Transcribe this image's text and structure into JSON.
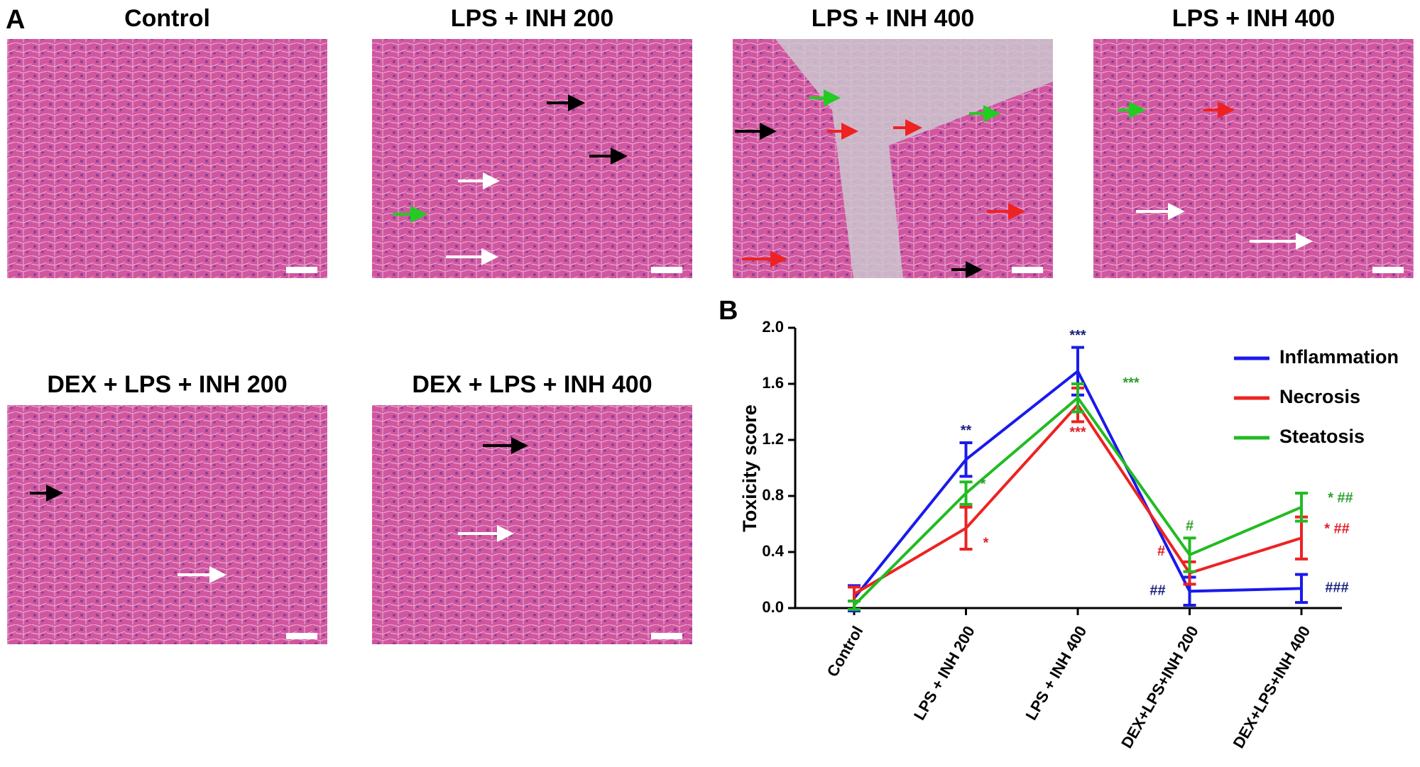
{
  "panel_a": {
    "label": "A",
    "panels": [
      {
        "title": "Control"
      },
      {
        "title": "LPS + INH 200"
      },
      {
        "title": "LPS + INH 400"
      },
      {
        "title": "LPS + INH 400"
      },
      {
        "title": "DEX + LPS + INH 200"
      },
      {
        "title": "DEX + LPS + INH 400"
      }
    ]
  },
  "chart_data": {
    "type": "line",
    "label": "B",
    "y_label": "Toxicity score",
    "categories": [
      "Control",
      "LPS + INH 200",
      "LPS + INH 400",
      "DEX+LPS+INH 200",
      "DEX+LPS+INH 400"
    ],
    "ylim": [
      0,
      2
    ],
    "yticks": [
      {
        "value": 0,
        "label": "0.0"
      },
      0.4,
      0.8,
      1.2,
      1.6,
      {
        "value": 2,
        "label": "2.0"
      }
    ],
    "series": [
      {
        "name": "Inflammation",
        "color": "#1a1aeb",
        "values": [
          0.07,
          1.06,
          1.69,
          0.12,
          0.14
        ],
        "errors": [
          0.09,
          0.12,
          0.17,
          0.1,
          0.1
        ],
        "annotations": [
          null,
          "**",
          "***",
          "##",
          "###"
        ],
        "annotation_color": "#1a237e"
      },
      {
        "name": "Necrosis",
        "color": "#ee2222",
        "values": [
          0.1,
          0.57,
          1.45,
          0.25,
          0.5
        ],
        "errors": [
          0.05,
          0.15,
          0.12,
          0.08,
          0.15
        ],
        "annotations": [
          null,
          "*",
          "***",
          "#",
          "* ##"
        ],
        "annotation_color": "#e0202a"
      },
      {
        "name": "Steatosis",
        "color": "#22bb22",
        "values": [
          0.02,
          0.82,
          1.5,
          0.38,
          0.72
        ],
        "errors": [
          0.03,
          0.08,
          0.1,
          0.12,
          0.1
        ],
        "annotations": [
          null,
          "*",
          "***",
          "#",
          "* ##"
        ],
        "annotation_color": "#2ea02e"
      }
    ],
    "legend": "upper right"
  }
}
